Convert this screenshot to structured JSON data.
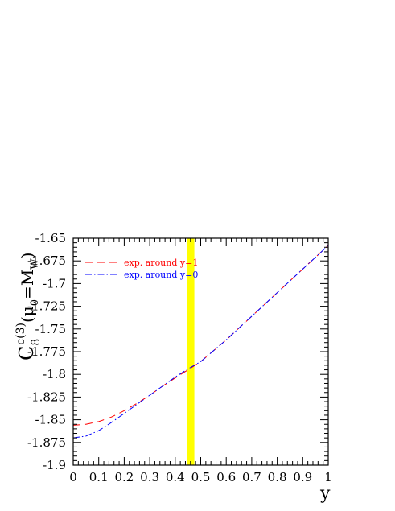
{
  "chart_data": {
    "type": "line",
    "x_axis": {
      "label": "y",
      "range": [
        0,
        1
      ],
      "ticks": [
        "0",
        "0.1",
        "0.2",
        "0.3",
        "0.4",
        "0.5",
        "0.6",
        "0.7",
        "0.8",
        "0.9",
        "1"
      ]
    },
    "y_axis": {
      "label_main": "C",
      "label_sub": "8",
      "label_sup": "c(3)",
      "label_rest_1": "(μ",
      "label_rest_sub": "0",
      "label_rest_2": "=M",
      "label_rest_sub2": "W",
      "label_rest_3": ")",
      "range": [
        -1.9,
        -1.65
      ],
      "ticks": [
        "-1.65",
        "-1.675",
        "-1.7",
        "-1.725",
        "-1.75",
        "-1.775",
        "-1.8",
        "-1.825",
        "-1.85",
        "-1.875",
        "-1.9"
      ]
    },
    "highlight_band": {
      "x_range": [
        0.445,
        0.475
      ],
      "color": "#ffff00"
    },
    "series": [
      {
        "name": "exp. around y=1",
        "color": "#ff0000",
        "style": "dashed",
        "x": [
          0,
          0.05,
          0.1,
          0.15,
          0.2,
          0.25,
          0.3,
          0.35,
          0.4,
          0.45,
          0.5,
          0.55,
          0.6,
          0.65,
          0.7,
          0.75,
          0.8,
          0.85,
          0.9,
          0.95,
          1.0
        ],
        "y": [
          -1.856,
          -1.855,
          -1.852,
          -1.847,
          -1.84,
          -1.832,
          -1.823,
          -1.813,
          -1.804,
          -1.795,
          -1.786,
          -1.774,
          -1.762,
          -1.749,
          -1.736,
          -1.723,
          -1.71,
          -1.697,
          -1.684,
          -1.671,
          -1.658
        ]
      },
      {
        "name": "exp. around y=0",
        "color": "#0000ff",
        "style": "dashdot",
        "x": [
          0,
          0.05,
          0.1,
          0.15,
          0.2,
          0.25,
          0.3,
          0.35,
          0.4,
          0.45,
          0.5,
          0.55,
          0.6,
          0.65,
          0.7,
          0.75,
          0.8,
          0.85,
          0.9,
          0.95,
          1.0
        ],
        "y": [
          -1.87,
          -1.868,
          -1.862,
          -1.853,
          -1.843,
          -1.833,
          -1.823,
          -1.813,
          -1.803,
          -1.794,
          -1.786,
          -1.774,
          -1.762,
          -1.749,
          -1.736,
          -1.723,
          -1.71,
          -1.697,
          -1.684,
          -1.671,
          -1.658
        ]
      }
    ],
    "legend_position": "top-left"
  }
}
